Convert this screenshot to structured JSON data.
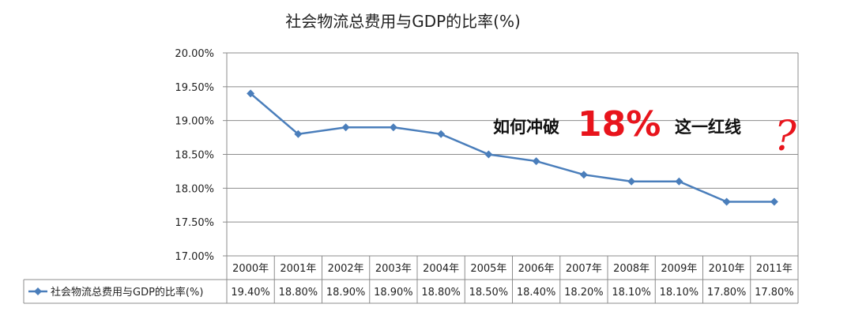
{
  "chart_data": {
    "type": "line",
    "title": "社会物流总费用与GDP的比率(%)",
    "categories": [
      "2000年",
      "2001年",
      "2002年",
      "2003年",
      "2004年",
      "2005年",
      "2006年",
      "2007年",
      "2008年",
      "2009年",
      "2010年",
      "2011年"
    ],
    "series": [
      {
        "name": "社会物流总费用与GDP的比率(%)",
        "values": [
          19.4,
          18.8,
          18.9,
          18.9,
          18.8,
          18.5,
          18.4,
          18.2,
          18.1,
          18.1,
          17.8,
          17.8
        ],
        "table_values": [
          "19.40%",
          "18.80%",
          "18.90%",
          "18.90%",
          "18.80%",
          "18.50%",
          "18.40%",
          "18.20%",
          "18.10%",
          "18.10%",
          "17.80%",
          "17.80%"
        ],
        "color": "#4a7ebb"
      }
    ],
    "ylim": [
      17.0,
      20.0
    ],
    "yticks": [
      17.0,
      17.5,
      18.0,
      18.5,
      19.0,
      19.5,
      20.0
    ],
    "ytick_labels": [
      "17.00%",
      "17.50%",
      "18.00%",
      "18.50%",
      "19.00%",
      "19.50%",
      "20.00%"
    ],
    "grid": true,
    "legend": "data-table-left",
    "annotation": {
      "pre": "如何冲破",
      "big": "18%",
      "post": "这一红线",
      "mark": "?",
      "color": "#e8141c"
    }
  }
}
